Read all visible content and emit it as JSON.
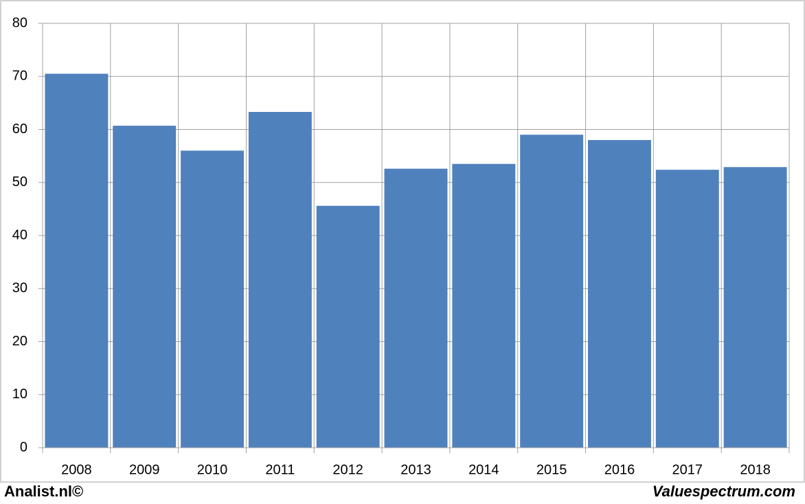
{
  "chart_data": {
    "type": "bar",
    "categories": [
      "2008",
      "2009",
      "2010",
      "2011",
      "2012",
      "2013",
      "2014",
      "2015",
      "2016",
      "2017",
      "2018"
    ],
    "values": [
      70.5,
      60.7,
      56,
      63.3,
      45.6,
      52.6,
      53.5,
      59,
      58,
      52.4,
      52.9
    ],
    "color": "#4f81bd",
    "ylim": [
      0,
      80
    ],
    "yticks": [
      0,
      10,
      20,
      30,
      40,
      50,
      60,
      70,
      80
    ],
    "grid": true
  },
  "footer": {
    "left": "Analist.nl©",
    "right": "Valuespectrum.com"
  }
}
